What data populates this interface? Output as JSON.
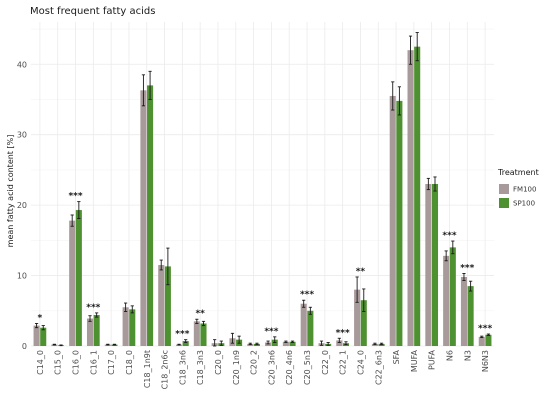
{
  "chart_data": {
    "type": "bar",
    "title": "Most frequent fatty acids",
    "xlabel": "",
    "ylabel": "mean fatty acid content [%]",
    "ylim": [
      0,
      46
    ],
    "yticks": [
      0,
      10,
      20,
      30,
      40
    ],
    "grid": true,
    "legend_position": "right",
    "legend_title": "Treatment",
    "colors": {
      "FM100": "#a89a9a",
      "SP100": "#4e9130",
      "error": "#1a1a1a"
    },
    "categories": [
      "C14_0",
      "C15_0",
      "C16_0",
      "C16_1",
      "C17_0",
      "C18_0",
      "C18_1n9t",
      "C18_2n6c",
      "C18_3n6",
      "C18_3n3",
      "C20_0",
      "C20_1n9",
      "C20_2",
      "C20_3n6",
      "C20_4n6",
      "C20_5n3",
      "C22_0",
      "C22_1",
      "C24_0",
      "C22_6n3",
      "SFA",
      "MUFA",
      "PUFA",
      "N6",
      "N3",
      "N6N3"
    ],
    "series": [
      {
        "name": "FM100",
        "values": [
          2.9,
          0.2,
          17.8,
          3.9,
          0.2,
          5.5,
          36.3,
          11.5,
          0.2,
          3.5,
          0.4,
          1.1,
          0.3,
          0.5,
          0.6,
          6.0,
          0.4,
          0.8,
          8.0,
          0.3,
          35.5,
          42.0,
          23.0,
          12.8,
          9.8,
          1.3
        ],
        "errors": [
          0.3,
          0.05,
          0.8,
          0.4,
          0.05,
          0.6,
          2.2,
          0.7,
          0.05,
          0.3,
          0.5,
          0.7,
          0.1,
          0.2,
          0.1,
          0.5,
          0.3,
          0.3,
          1.8,
          0.1,
          2.0,
          2.0,
          0.8,
          0.7,
          0.5,
          0.1
        ]
      },
      {
        "name": "SP100",
        "values": [
          2.6,
          0.1,
          19.3,
          4.4,
          0.2,
          5.2,
          37.0,
          11.3,
          0.7,
          3.2,
          0.4,
          0.9,
          0.3,
          0.9,
          0.6,
          5.0,
          0.3,
          0.4,
          6.5,
          0.3,
          34.8,
          42.5,
          23.0,
          14.0,
          8.5,
          1.6
        ],
        "errors": [
          0.3,
          0.05,
          1.2,
          0.3,
          0.05,
          0.5,
          2.0,
          2.6,
          0.2,
          0.3,
          0.3,
          0.5,
          0.1,
          0.4,
          0.1,
          0.5,
          0.2,
          0.2,
          1.6,
          0.1,
          2.0,
          2.0,
          1.0,
          0.9,
          0.7,
          0.1
        ]
      }
    ],
    "annotations": [
      {
        "category": "C14_0",
        "text": "*"
      },
      {
        "category": "C16_0",
        "text": "***"
      },
      {
        "category": "C16_1",
        "text": "***"
      },
      {
        "category": "C18_3n6",
        "text": "***"
      },
      {
        "category": "C18_3n3",
        "text": "**"
      },
      {
        "category": "C20_3n6",
        "text": "***"
      },
      {
        "category": "C20_5n3",
        "text": "***"
      },
      {
        "category": "C22_1",
        "text": "***"
      },
      {
        "category": "C24_0",
        "text": "**"
      },
      {
        "category": "N6",
        "text": "***"
      },
      {
        "category": "N3",
        "text": "***"
      },
      {
        "category": "N6N3",
        "text": "***"
      }
    ]
  }
}
